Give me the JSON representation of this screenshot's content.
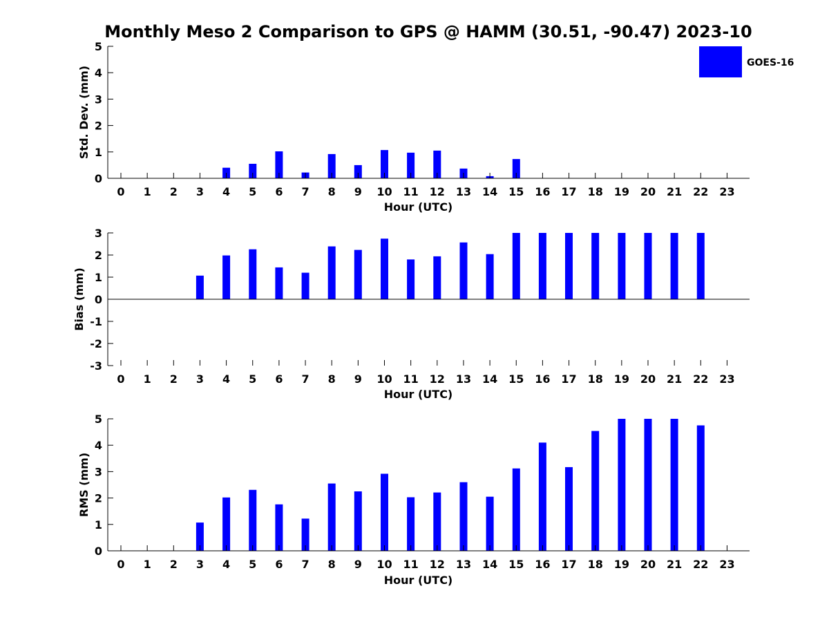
{
  "title": "Monthly Meso 2 Comparison to GPS @ HAMM (30.51, -90.47) 2023-10",
  "legend": {
    "label": "GOES-16",
    "color": "#0000ff",
    "placement": "top-right"
  },
  "chart_data": [
    {
      "type": "bar",
      "xlabel": "Hour (UTC)",
      "ylabel": "Std. Dev. (mm)",
      "ylim": [
        0,
        5
      ],
      "yticks": [
        0,
        1,
        2,
        3,
        4,
        5
      ],
      "categories": [
        "0",
        "1",
        "2",
        "3",
        "4",
        "5",
        "6",
        "7",
        "8",
        "9",
        "10",
        "11",
        "12",
        "13",
        "14",
        "15",
        "16",
        "17",
        "18",
        "19",
        "20",
        "21",
        "22",
        "23"
      ],
      "series": [
        {
          "name": "GOES-16",
          "values": [
            null,
            null,
            null,
            null,
            0.4,
            0.55,
            1.02,
            0.22,
            0.92,
            0.5,
            1.07,
            0.97,
            1.05,
            0.37,
            0.08,
            0.73,
            null,
            null,
            null,
            null,
            null,
            null,
            null,
            null
          ]
        }
      ]
    },
    {
      "type": "bar",
      "xlabel": "Hour (UTC)",
      "ylabel": "Bias (mm)",
      "ylim": [
        -3,
        3
      ],
      "yticks": [
        -3,
        -2,
        -1,
        0,
        1,
        2,
        3
      ],
      "categories": [
        "0",
        "1",
        "2",
        "3",
        "4",
        "5",
        "6",
        "7",
        "8",
        "9",
        "10",
        "11",
        "12",
        "13",
        "14",
        "15",
        "16",
        "17",
        "18",
        "19",
        "20",
        "21",
        "22",
        "23"
      ],
      "series": [
        {
          "name": "GOES-16",
          "values": [
            null,
            null,
            null,
            1.07,
            1.98,
            2.26,
            1.44,
            1.2,
            2.39,
            2.23,
            2.74,
            1.8,
            1.94,
            2.57,
            2.04,
            3,
            3,
            3,
            3,
            3,
            3,
            3,
            3,
            null
          ]
        }
      ]
    },
    {
      "type": "bar",
      "xlabel": "Hour (UTC)",
      "ylabel": "RMS (mm)",
      "ylim": [
        0,
        5
      ],
      "yticks": [
        0,
        1,
        2,
        3,
        4,
        5
      ],
      "categories": [
        "0",
        "1",
        "2",
        "3",
        "4",
        "5",
        "6",
        "7",
        "8",
        "9",
        "10",
        "11",
        "12",
        "13",
        "14",
        "15",
        "16",
        "17",
        "18",
        "19",
        "20",
        "21",
        "22",
        "23"
      ],
      "series": [
        {
          "name": "GOES-16",
          "values": [
            null,
            null,
            null,
            1.07,
            2.02,
            2.31,
            1.76,
            1.22,
            2.55,
            2.25,
            2.92,
            2.03,
            2.21,
            2.6,
            2.05,
            3.12,
            4.1,
            3.17,
            4.54,
            5,
            5,
            5,
            4.75,
            null
          ]
        }
      ]
    }
  ]
}
